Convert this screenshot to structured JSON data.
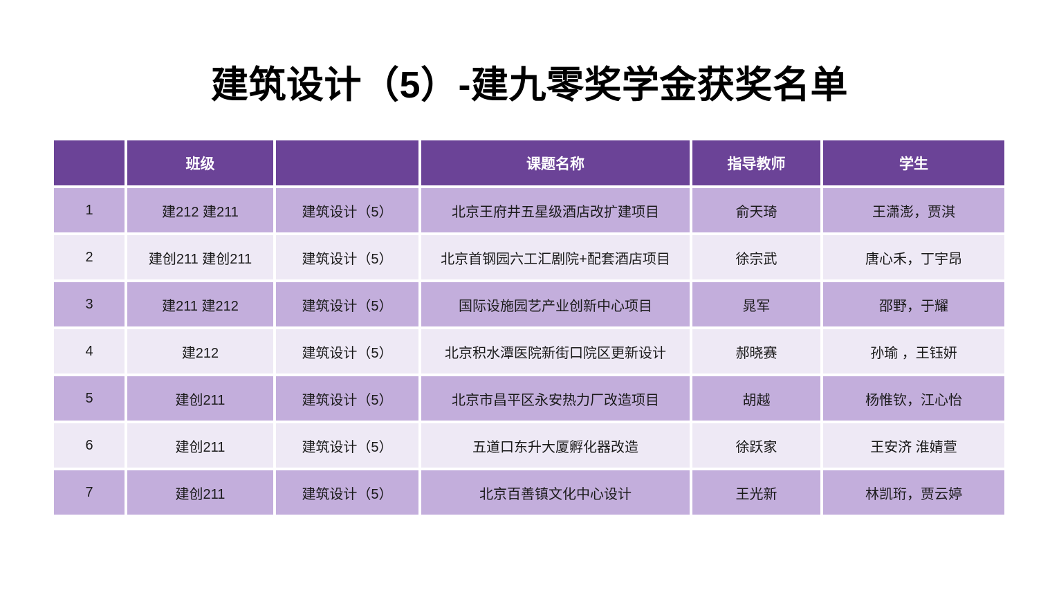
{
  "title": "建筑设计（5）-建九零奖学金获奖名单",
  "table": {
    "headers": [
      "",
      "班级",
      "",
      "课题名称",
      "指导教师",
      "学生"
    ],
    "rows": [
      [
        "1",
        "建212 建211",
        "建筑设计（5）",
        "北京王府井五星级酒店改扩建项目",
        "俞天琦",
        "王潇澎，贾淇"
      ],
      [
        "2",
        "建创211 建创211",
        "建筑设计（5）",
        "北京首钢园六工汇剧院+配套酒店项目",
        "徐宗武",
        "唐心禾，丁宇昂"
      ],
      [
        "3",
        "建211 建212",
        "建筑设计（5）",
        "国际设施园艺产业创新中心项目",
        "晁军",
        "邵野，于耀"
      ],
      [
        "4",
        "建212",
        "建筑设计（5）",
        "北京积水潭医院新街口院区更新设计",
        "郝晓赛",
        "孙瑜 ，王钰妍"
      ],
      [
        "5",
        "建创211",
        "建筑设计（5）",
        "北京市昌平区永安热力厂改造项目",
        "胡越",
        "杨惟钦，江心怡"
      ],
      [
        "6",
        "建创211",
        "建筑设计（5）",
        "五道口东升大厦孵化器改造",
        "徐跃家",
        "王安济 淮婧萱"
      ],
      [
        "7",
        "建创211",
        "建筑设计（5）",
        "北京百善镇文化中心设计",
        "王光新",
        "林凯珩，贾云婷"
      ]
    ]
  },
  "colors": {
    "header_bg": "#6B4397",
    "row_odd_bg": "#C3AEDC",
    "row_even_bg": "#EEE9F5",
    "header_text": "#FFFFFF",
    "cell_text": "#1A1A1A",
    "title_text": "#000000"
  }
}
